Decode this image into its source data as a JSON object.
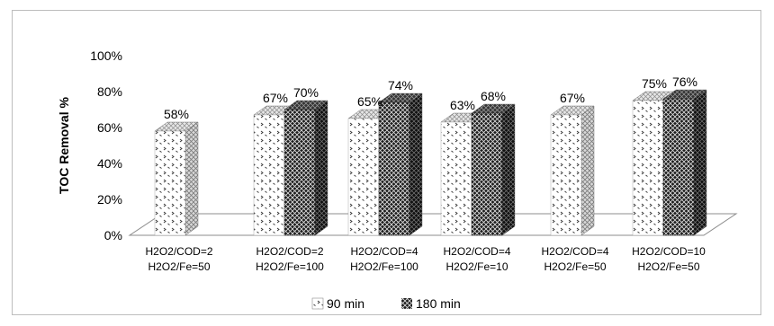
{
  "chart_data": {
    "type": "bar",
    "title": "",
    "xlabel": "",
    "ylabel": "TOC Removal %",
    "ylim": [
      0,
      100
    ],
    "yticks": [
      "0%",
      "20%",
      "40%",
      "60%",
      "80%",
      "100%"
    ],
    "categories": [
      [
        "H2O2/COD=2",
        "H2O2/Fe=50"
      ],
      [
        "H2O2/COD=2",
        "H2O2/Fe=100"
      ],
      [
        "H2O2/COD=4",
        "H2O2/Fe=100"
      ],
      [
        "H2O2/COD=4",
        "H2O2/Fe=10"
      ],
      [
        "H2O2/COD=4",
        "H2O2/Fe=50"
      ],
      [
        "H2O2/COD=10",
        "H2O2/Fe=50"
      ]
    ],
    "series": [
      {
        "name": "90 min",
        "values": [
          58,
          67,
          65,
          63,
          67,
          75
        ],
        "labels": [
          "58%",
          "67%",
          "65%",
          "63%",
          "67%",
          "75%"
        ]
      },
      {
        "name": "180 min",
        "values": [
          null,
          70,
          74,
          68,
          null,
          76
        ],
        "labels": [
          "",
          "70%",
          "74%",
          "68%",
          "",
          "76%"
        ]
      }
    ],
    "legend_position": "bottom",
    "grid": false,
    "colors": {
      "series90_pattern_bg": "#ffffff",
      "series180_pattern_bg": "#1a1a1a",
      "axis": "#8c8c8c"
    }
  }
}
